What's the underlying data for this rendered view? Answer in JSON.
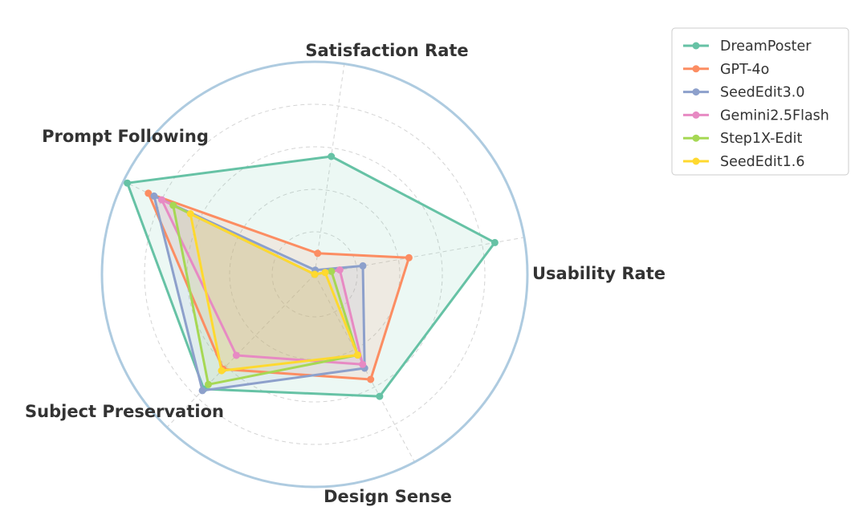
{
  "chart_data": {
    "type": "radar",
    "axes": [
      "Satisfaction Rate",
      "Usability Rate",
      "Design Sense",
      "Subject Preservation",
      "Prompt Following"
    ],
    "rmax": 100,
    "grid": true,
    "legend_position": "top-right",
    "series": [
      {
        "name": "DreamPoster",
        "color": "#66c2a5",
        "values": [
          56,
          86,
          65,
          75,
          98
        ]
      },
      {
        "name": "GPT-4o",
        "color": "#fc8d62",
        "values": [
          10,
          45,
          56,
          62,
          87
        ]
      },
      {
        "name": "SeedEdit3.0",
        "color": "#8da0cb",
        "values": [
          2,
          23,
          50,
          76,
          84
        ]
      },
      {
        "name": "Gemini2.5Flash",
        "color": "#e78ac3",
        "values": [
          0,
          12,
          48,
          53,
          80
        ]
      },
      {
        "name": "Step1X-Edit",
        "color": "#a6d854",
        "values": [
          0,
          8,
          43,
          72,
          74
        ]
      },
      {
        "name": "SeedEdit1.6",
        "color": "#ffd92f",
        "values": [
          0,
          5,
          43,
          63,
          65
        ]
      }
    ]
  }
}
